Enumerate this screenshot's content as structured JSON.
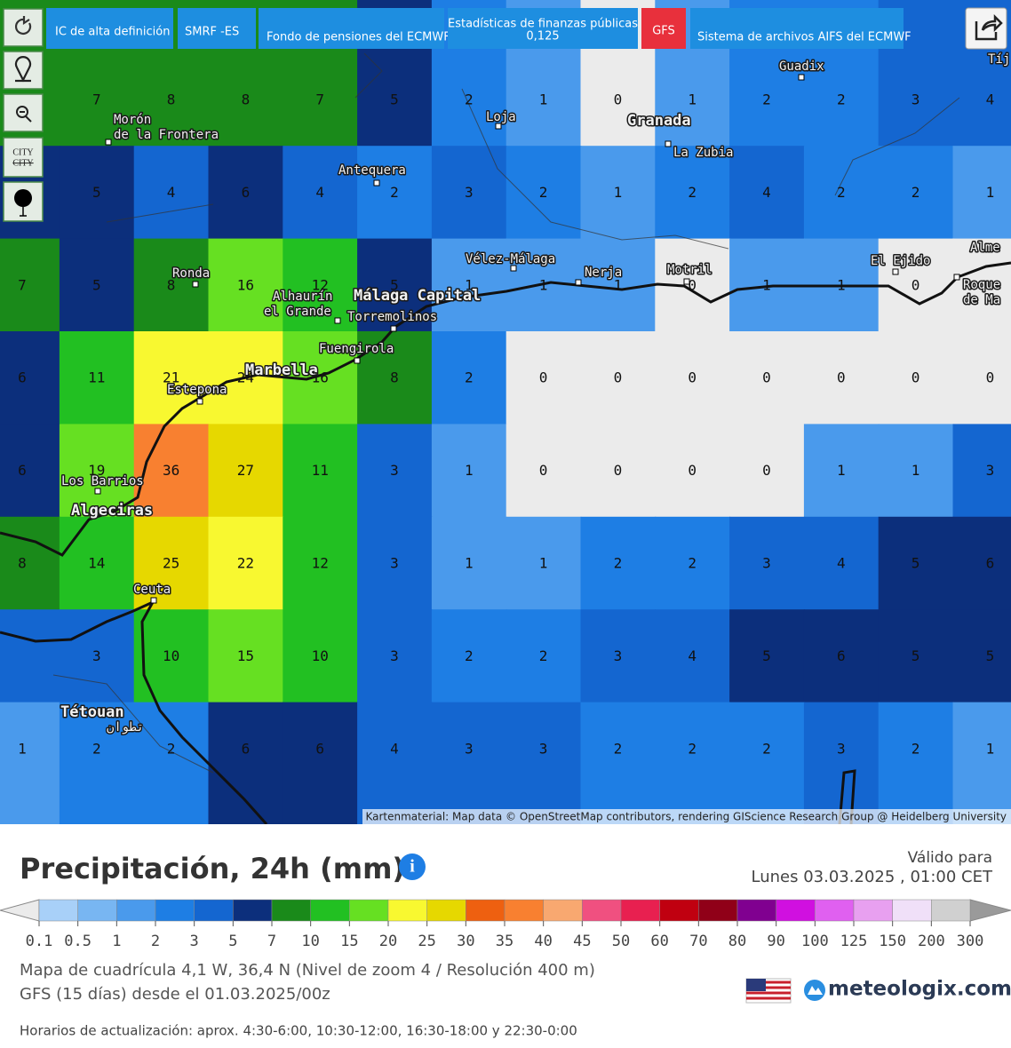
{
  "toolbar": {
    "buttons": [
      "IC de alta definición",
      "SMRF -ES",
      "Fondo de pensiones del ECMWF",
      "Estadísticas de finanzas públicas",
      "0,125",
      "GFS",
      "Sistema de archivos AIFS del ECMWF"
    ],
    "city": "CITY"
  },
  "map": {
    "places": [
      "Morón",
      "de la Frontera",
      "Loja",
      "Granada",
      "La Zubia",
      "Guadix",
      "Antequera",
      "Vélez-Málaga",
      "Nerja",
      "Motril",
      "El Ejido",
      "Ronda",
      "Alhaurín",
      "el Grande",
      "Málaga Capital",
      "Torremolinos",
      "Fuengirola",
      "Marbella",
      "Estepona",
      "Los Barrios",
      "Algeciras",
      "Ceuta",
      "Tétouan",
      "تطوان",
      "Alme",
      "Tíj",
      "Roque",
      "de Ma"
    ],
    "grid": [
      [
        null,
        7,
        8,
        8,
        7,
        5,
        2,
        1,
        0,
        1,
        2,
        2,
        3,
        4
      ],
      [
        null,
        5,
        4,
        6,
        4,
        2,
        3,
        2,
        1,
        2,
        4,
        2,
        2,
        1
      ],
      [
        7,
        5,
        8,
        16,
        12,
        5,
        1,
        1,
        1,
        0,
        1,
        1,
        0,
        null
      ],
      [
        6,
        11,
        21,
        24,
        16,
        8,
        2,
        0,
        0,
        0,
        0,
        0,
        0,
        0
      ],
      [
        6,
        19,
        36,
        27,
        11,
        3,
        1,
        0,
        0,
        0,
        0,
        1,
        1,
        3
      ],
      [
        8,
        14,
        25,
        22,
        12,
        3,
        1,
        1,
        2,
        2,
        3,
        4,
        5,
        6
      ],
      [
        null,
        3,
        10,
        15,
        10,
        3,
        2,
        2,
        3,
        4,
        5,
        6,
        5,
        5
      ],
      [
        1,
        2,
        2,
        6,
        6,
        4,
        3,
        3,
        2,
        2,
        2,
        3,
        2,
        1
      ]
    ],
    "attribution": "Kartenmaterial: Map data © OpenStreetMap contributors, rendering GIScience Research Group @ Heidelberg University"
  },
  "legend": {
    "title": "Precipitación, 24h (mm)",
    "valid_label": "Válido para",
    "valid_date": "Lunes 03.03.2025 , 01:00 CET",
    "labels": [
      0.1,
      0.5,
      1,
      2,
      3,
      5,
      7,
      10,
      15,
      20,
      25,
      30,
      35,
      40,
      45,
      50,
      60,
      70,
      80,
      90,
      100,
      125,
      150,
      200,
      300
    ],
    "colors": [
      "#a8d0f8",
      "#78b6f2",
      "#4a9aec",
      "#1e7ee4",
      "#1466d0",
      "#0c2f7c",
      "#1a8a1a",
      "#22c022",
      "#66e022",
      "#f8f830",
      "#e6d800",
      "#ee6010",
      "#f88030",
      "#f8a870",
      "#f05080",
      "#e82050",
      "#c00010",
      "#900018",
      "#800090",
      "#d010e0",
      "#e060f0",
      "#e8a0f0",
      "#f0e0f8",
      "#d0d0d0"
    ],
    "below_color": "#ebebeb",
    "above_color": "#9a9a9a"
  },
  "footer": {
    "grid_info": "Mapa de cuadrícula 4,1 W, 36,4 N (Nivel de zoom 4 / Resolución 400 m)",
    "model_info": "GFS (15 días) desde el 01.03.2025/00z",
    "brand": "meteologix.com",
    "update_times": "Horarios de actualización: aprox. 4:30-6:00, 10:30-12:00, 16:30-18:00 y 22:30-0:00"
  }
}
